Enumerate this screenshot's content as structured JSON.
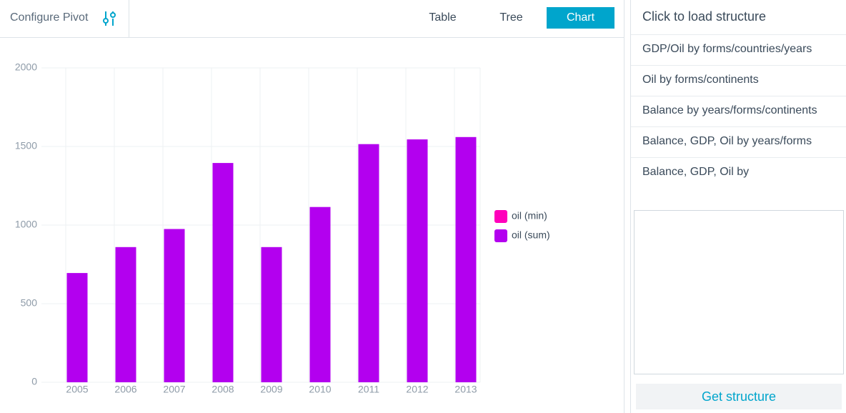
{
  "header": {
    "title": "Configure Pivot",
    "tabs": [
      "Table",
      "Tree",
      "Chart"
    ],
    "active_tab": 2
  },
  "chart_data": {
    "type": "bar",
    "categories": [
      "2005",
      "2006",
      "2007",
      "2008",
      "2009",
      "2010",
      "2011",
      "2012",
      "2013"
    ],
    "series": [
      {
        "name": "oil (min)",
        "color": "#ff00bb",
        "values": [
          null,
          null,
          null,
          null,
          null,
          null,
          null,
          null,
          null
        ]
      },
      {
        "name": "oil (sum)",
        "color": "#b300ef",
        "values": [
          695,
          860,
          975,
          1395,
          860,
          1115,
          1515,
          1545,
          1560
        ]
      }
    ],
    "ylim": [
      0,
      2000
    ],
    "yticks": [
      0,
      500,
      1000,
      1500,
      2000
    ],
    "grid": true,
    "legend": "right"
  },
  "sidebar": {
    "title": "Click to load structure",
    "items": [
      "GDP/Oil by forms/countries/years",
      "Oil by forms/continents",
      "Balance by years/forms/continents",
      "Balance, GDP, Oil by years/forms",
      "Balance, GDP, Oil by"
    ],
    "button": "Get structure"
  }
}
